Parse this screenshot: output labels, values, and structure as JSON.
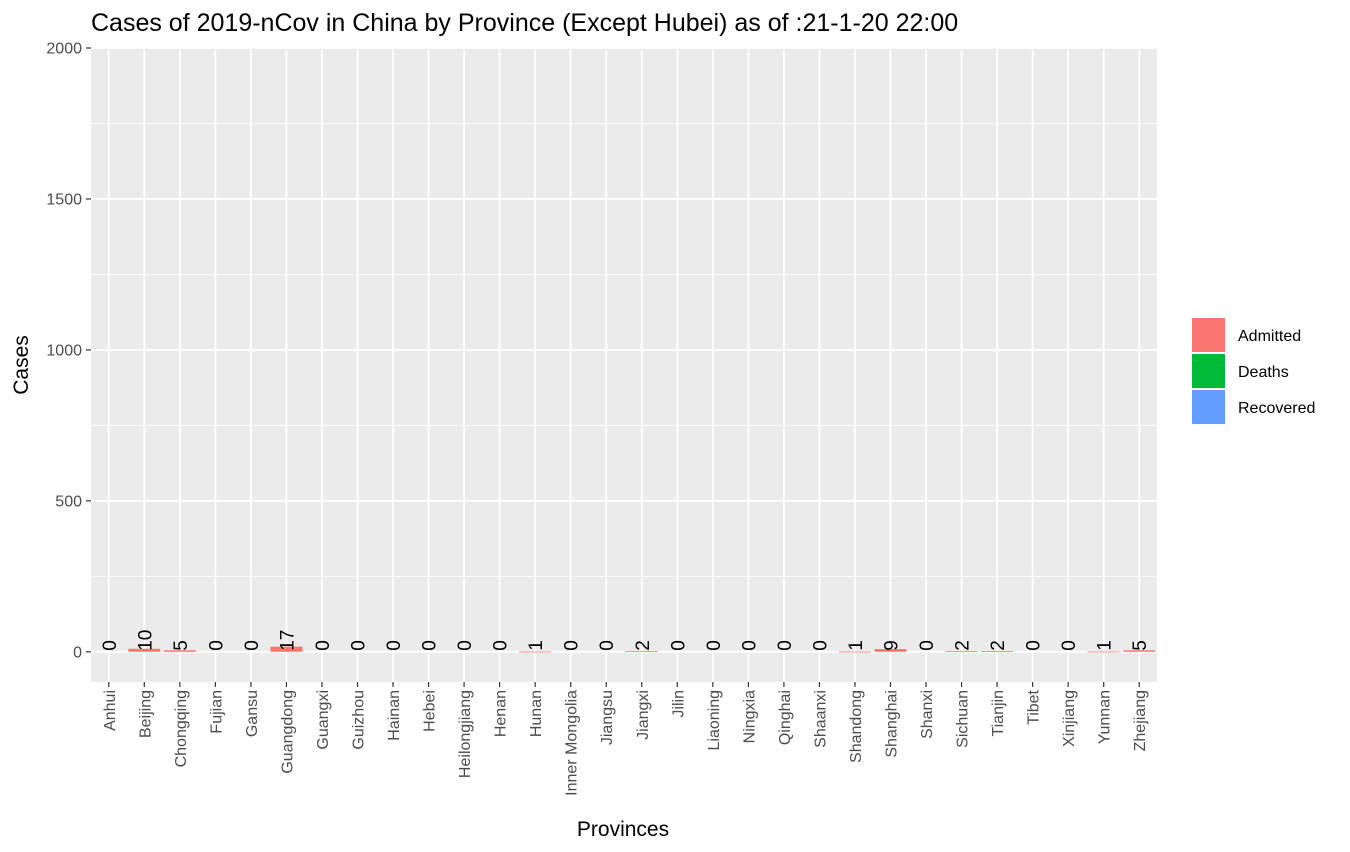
{
  "chart_data": {
    "type": "bar",
    "title": "Cases of 2019-nCov in China by Province (Except Hubei) as of :21-1-20 22:00",
    "xlabel": "Provinces",
    "ylabel": "Cases",
    "ylim": [
      -100,
      2000
    ],
    "yticks": [
      0,
      500,
      1000,
      1500,
      2000
    ],
    "ytick_labels": [
      "0",
      "500",
      "1000",
      "1500",
      "2000"
    ],
    "grid": true,
    "legend_position": "right",
    "categories": [
      "Anhui",
      "Beijing",
      "Chongqing",
      "Fujian",
      "Gansu",
      "Guangdong",
      "Guangxi",
      "Guizhou",
      "Hainan",
      "Hebei",
      "Heilongjiang",
      "Henan",
      "Hunan",
      "Inner Mongolia",
      "Jiangsu",
      "Jiangxi",
      "Jilin",
      "Liaoning",
      "Ningxia",
      "Qinghai",
      "Shaanxi",
      "Shandong",
      "Shanghai",
      "Shanxi",
      "Sichuan",
      "Tianjin",
      "Tibet",
      "Xinjiang",
      "Yunnan",
      "Zhejiang"
    ],
    "series": [
      {
        "name": "Admitted",
        "color": "#F8766D",
        "values": [
          0,
          10,
          5,
          0,
          0,
          17,
          0,
          0,
          0,
          0,
          0,
          0,
          1,
          0,
          0,
          2,
          0,
          0,
          0,
          0,
          0,
          1,
          9,
          0,
          2,
          2,
          0,
          0,
          1,
          5
        ]
      },
      {
        "name": "Deaths",
        "color": "#00BA38",
        "values": [
          0,
          0,
          0,
          0,
          0,
          0,
          0,
          0,
          0,
          0,
          0,
          0,
          0,
          0,
          0,
          0,
          0,
          0,
          0,
          0,
          0,
          0,
          0,
          0,
          0,
          0,
          0,
          0,
          0,
          0
        ]
      },
      {
        "name": "Recovered",
        "color": "#619CFF",
        "values": [
          0,
          0,
          0,
          0,
          0,
          0,
          0,
          0,
          0,
          0,
          0,
          0,
          0,
          0,
          0,
          0,
          0,
          0,
          0,
          0,
          0,
          0,
          0,
          0,
          0,
          0,
          0,
          0,
          0,
          0
        ]
      }
    ],
    "data_labels": [
      "0",
      "10",
      "5",
      "0",
      "0",
      "17",
      "0",
      "0",
      "0",
      "0",
      "0",
      "0",
      "1",
      "0",
      "0",
      "2",
      "0",
      "0",
      "0",
      "0",
      "0",
      "1",
      "9",
      "0",
      "2",
      "2",
      "0",
      "0",
      "1",
      "5"
    ],
    "panel_color": "#EBEBEB",
    "grid_color": "#FFFFFF"
  }
}
